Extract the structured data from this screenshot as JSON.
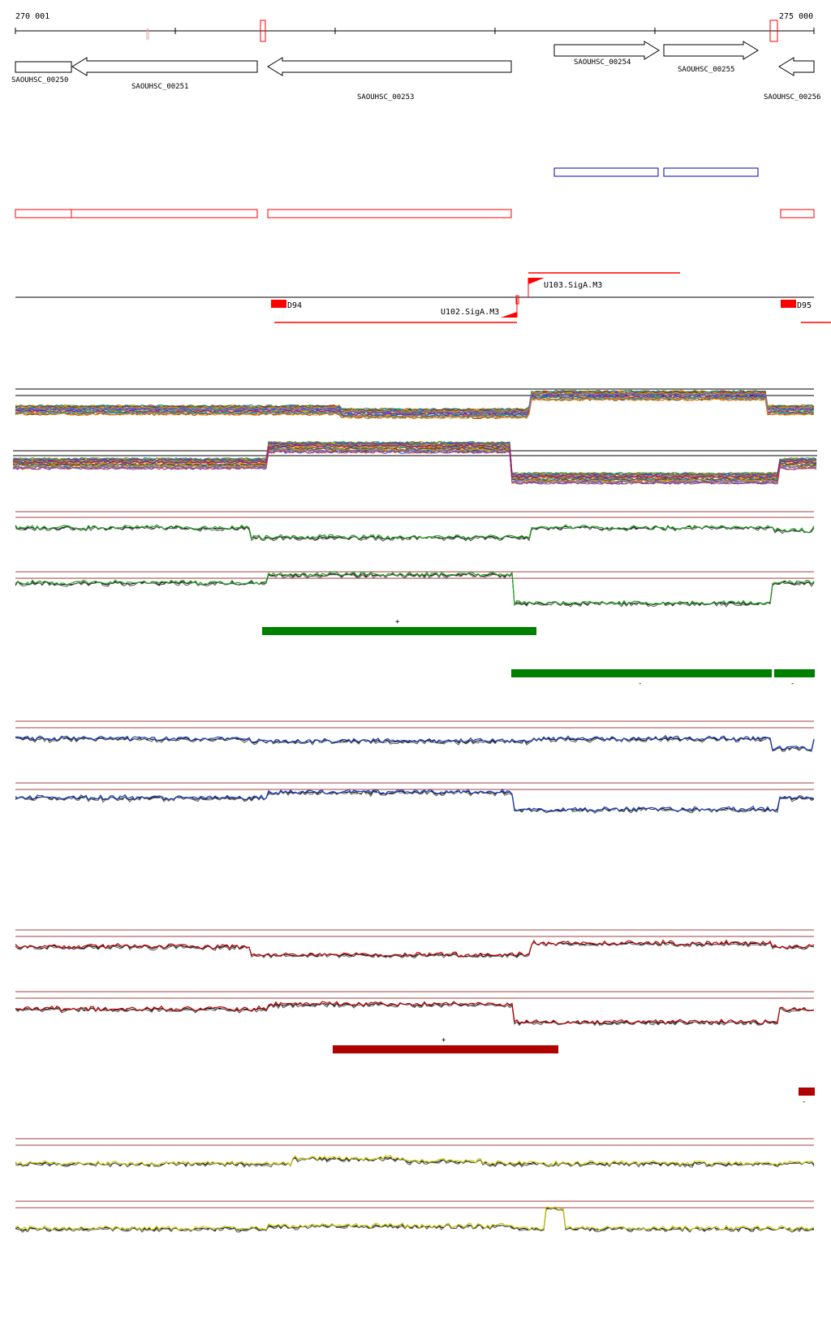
{
  "coords": {
    "start": "270 001",
    "end": "275 000"
  },
  "genes": [
    {
      "id": "SAOUHSC_00250"
    },
    {
      "id": "SAOUHSC_00251"
    },
    {
      "id": "SAOUHSC_00253"
    },
    {
      "id": "SAOUHSC_00254"
    },
    {
      "id": "SAOUHSC_00255"
    },
    {
      "id": "SAOUHSC_00256"
    }
  ],
  "features": {
    "terminators": [
      {
        "label": "D94"
      },
      {
        "label": "D95"
      }
    ],
    "promoters": [
      {
        "label": "U103.SigA.M3"
      },
      {
        "label": "U102.SigA.M3"
      }
    ]
  },
  "segments": {
    "plus": "+",
    "minus": "-"
  },
  "colors": {
    "gene_outline": "#000000",
    "annotation_red": "#ff0000",
    "annotation_blue": "#0000c0",
    "seg_green": "#008000",
    "seg_red": "#b00000",
    "track_blue": "#1a3fbf",
    "track_yellow": "#c8c800",
    "threshold": "#a04040"
  }
}
